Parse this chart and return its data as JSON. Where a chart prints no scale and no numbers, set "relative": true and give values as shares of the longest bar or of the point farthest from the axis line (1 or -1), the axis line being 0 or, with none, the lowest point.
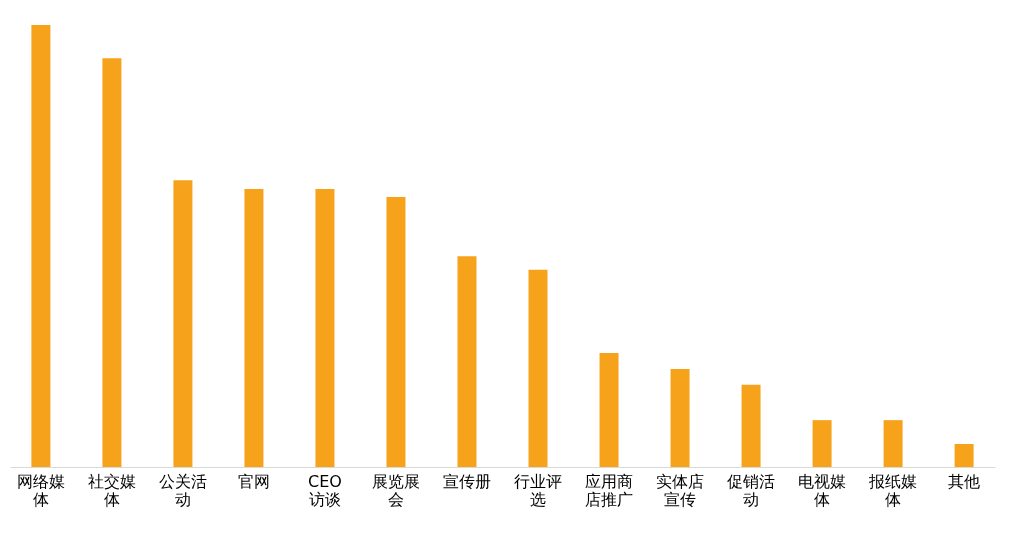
{
  "chart_data": {
    "type": "bar",
    "relative": true,
    "color": "#f7a21b",
    "categories": [
      "网络媒体",
      "社交媒体",
      "公关活动",
      "官网",
      "CEO 访谈",
      "展览展会",
      "宣传册",
      "行业评选",
      "应用商店推广",
      "实体店宣传",
      "促销活动",
      "电视媒体",
      "报纸媒体",
      "其他"
    ],
    "values": [
      1.0,
      0.925,
      0.649,
      0.629,
      0.629,
      0.611,
      0.477,
      0.446,
      0.258,
      0.222,
      0.186,
      0.106,
      0.106,
      0.052
    ]
  }
}
